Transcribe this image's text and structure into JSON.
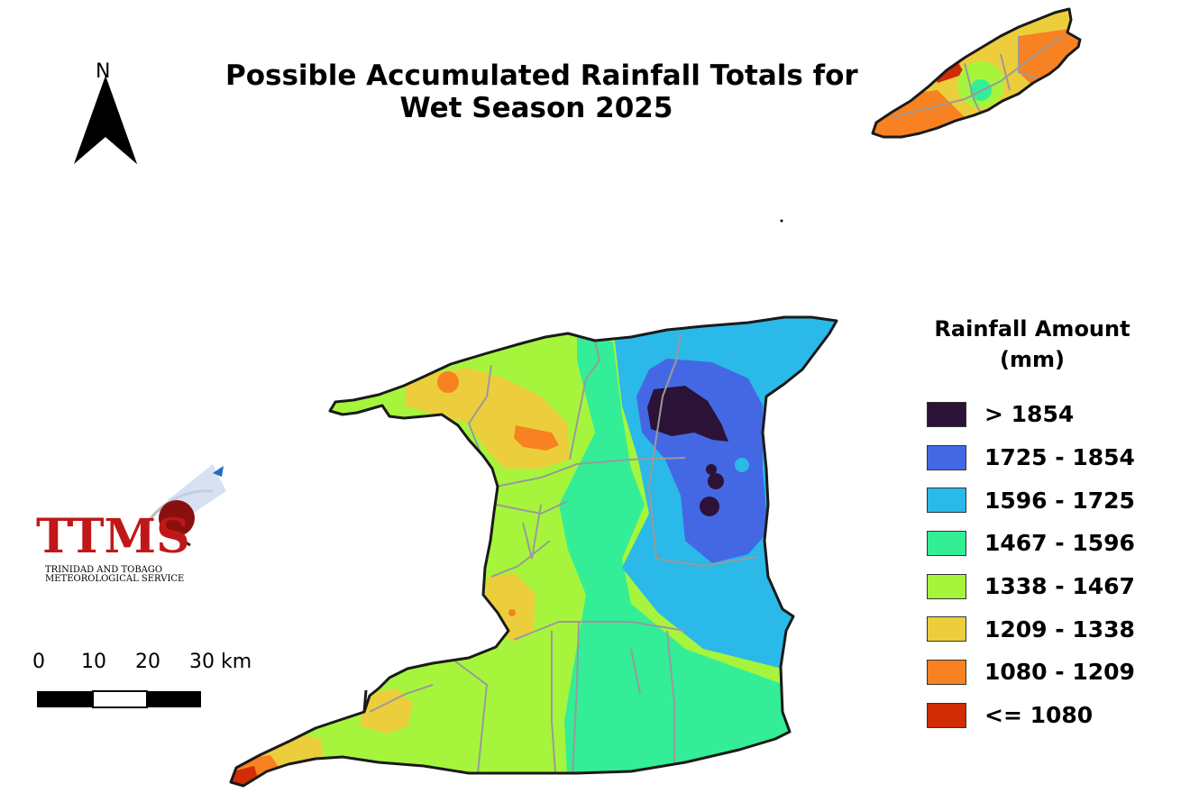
{
  "title": {
    "line1": "Possible Accumulated Rainfall Totals for",
    "line2": "Wet Season 2025"
  },
  "north_arrow": {
    "label": "N",
    "icon": "north-arrow-icon"
  },
  "legend": {
    "title_line1": "Rainfall Amount",
    "title_line2": "(mm)",
    "items": [
      {
        "label": "> 1854",
        "color": "#2b1236"
      },
      {
        "label": "1725 - 1854",
        "color": "#4468e4"
      },
      {
        "label": "1596 - 1725",
        "color": "#2ab9e8"
      },
      {
        "label": "1467 - 1596",
        "color": "#33ee96"
      },
      {
        "label": "1338 - 1467",
        "color": "#a6f53c"
      },
      {
        "label": "1209 - 1338",
        "color": "#ecce3c"
      },
      {
        "label": "1080 - 1209",
        "color": "#f88222"
      },
      {
        "label": "<= 1080",
        "color": "#d02c06"
      }
    ]
  },
  "scale_bar": {
    "labels": [
      "0",
      "10",
      "20",
      "30 km"
    ]
  },
  "logo": {
    "name": "TTMS",
    "line1": "TRINIDAD AND TOBAGO",
    "line2": "METEOROLOGICAL SERVICE"
  },
  "map": {
    "islands": [
      "Trinidad",
      "Tobago"
    ],
    "outline_color": "#1a1a1a",
    "boundary_color": "#9a9a9a"
  }
}
